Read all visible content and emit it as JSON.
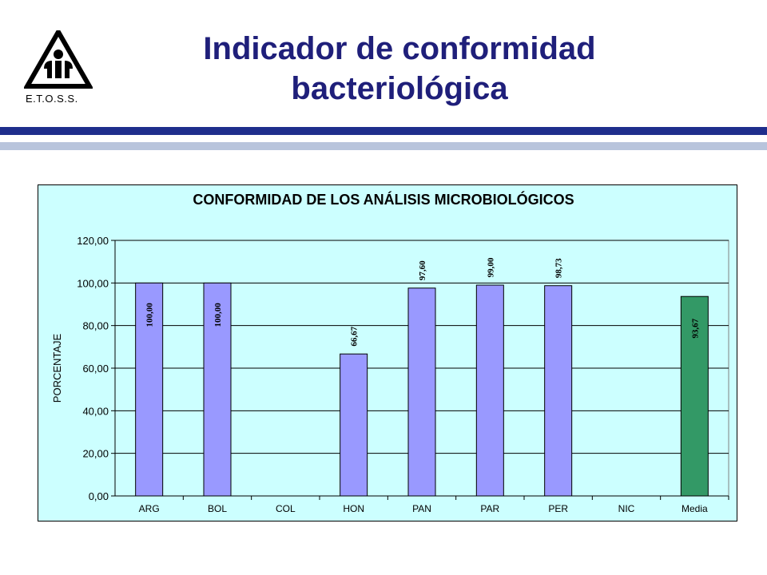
{
  "header": {
    "title_line1": "Indicador de conformidad",
    "title_line2": "bacteriológica",
    "logo_caption": "E.T.O.S.S."
  },
  "colors": {
    "title": "#1f1f7a",
    "rule_dark": "#1f2e8c",
    "rule_light": "#b8c4dc",
    "plot_background": "#ccffff",
    "bar_country": "#9999ff",
    "bar_mean": "#339966"
  },
  "chart_data": {
    "type": "bar",
    "title": "CONFORMIDAD DE LOS ANÁLISIS MICROBIOLÓGICOS",
    "xlabel": "",
    "ylabel": "PORCENTAJE",
    "ylim": [
      0,
      120
    ],
    "yticks": [
      "0,00",
      "20,00",
      "40,00",
      "60,00",
      "80,00",
      "100,00",
      "120,00"
    ],
    "grid": true,
    "categories": [
      "ARG",
      "BOL",
      "COL",
      "HON",
      "PAN",
      "PAR",
      "PER",
      "NIC",
      "Media"
    ],
    "values": [
      100.0,
      100.0,
      null,
      66.67,
      97.6,
      99.0,
      98.73,
      null,
      93.67
    ],
    "value_labels": [
      "100,00",
      "100,00",
      "",
      "66,67",
      "97,60",
      "99,00",
      "98,73",
      "",
      "93,67"
    ],
    "highlight_category": "Media"
  }
}
